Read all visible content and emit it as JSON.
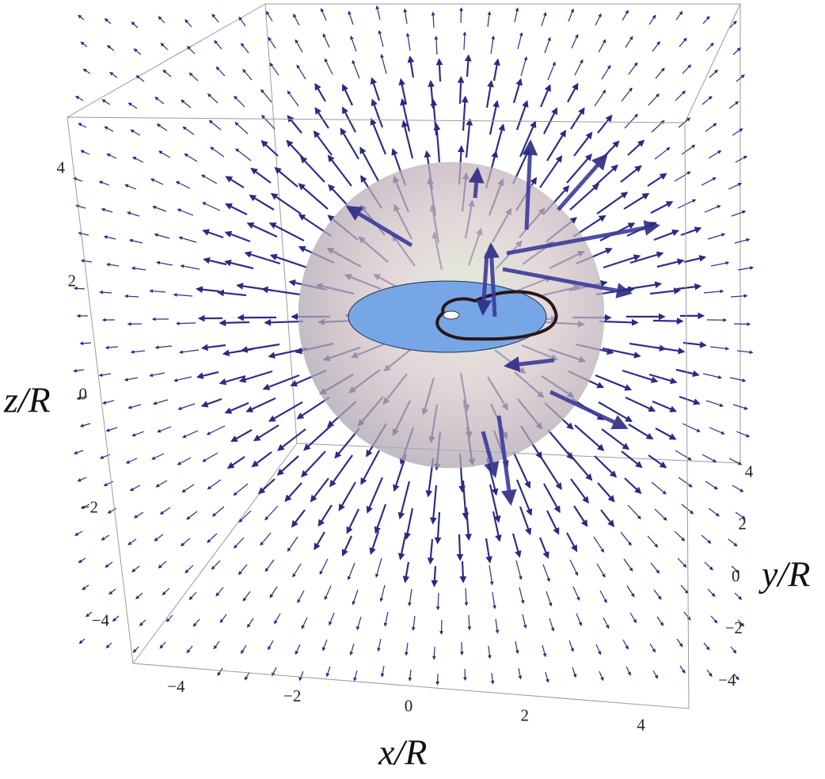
{
  "chart_data": {
    "type": "vector3d",
    "xlabel": "x/R",
    "ylabel": "y/R",
    "zlabel": "z/R",
    "xlim": [
      -5,
      5
    ],
    "ylim": [
      -5,
      5
    ],
    "zlim": [
      -5,
      5
    ],
    "xticks": [
      {
        "value": -4,
        "label": "−4"
      },
      {
        "value": -2,
        "label": "−2"
      },
      0,
      2,
      4
    ],
    "yticks": [
      {
        "value": -4,
        "label": "−4"
      },
      {
        "value": -2,
        "label": "−2"
      },
      0,
      2,
      4
    ],
    "zticks": [
      {
        "value": -4,
        "label": "−4"
      },
      {
        "value": -2,
        "label": "−2"
      },
      0,
      2,
      4
    ]
  }
}
